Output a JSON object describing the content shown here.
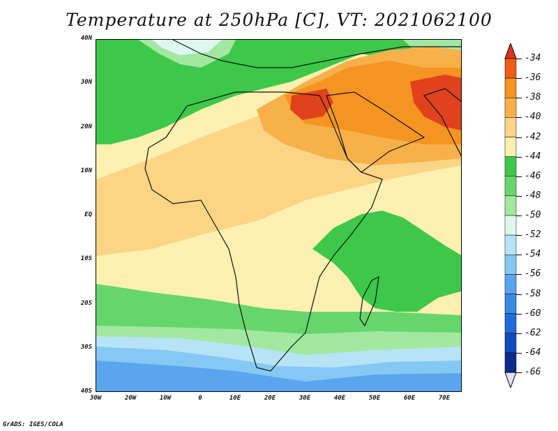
{
  "title": "Temperature at 250hPa [C], VT: 2021062100",
  "credit": "GrADS: IGES/COLA",
  "lat_labels": [
    "40N",
    "30N",
    "20N",
    "10N",
    "EQ",
    "10S",
    "20S",
    "30S",
    "40S"
  ],
  "lon_labels": [
    "30W",
    "20W",
    "10W",
    "0",
    "10E",
    "20E",
    "30E",
    "40E",
    "50E",
    "60E",
    "70E"
  ],
  "colorbar": {
    "labels": [
      "-34",
      "-36",
      "-38",
      "-40",
      "-42",
      "-44",
      "-46",
      "-48",
      "-50",
      "-52",
      "-54",
      "-56",
      "-58",
      "-60",
      "-62",
      "-64",
      "-66"
    ],
    "colors": [
      "#e0321e",
      "#f05a18",
      "#f59420",
      "#f8b04a",
      "#fbd585",
      "#fdf0b0",
      "#3ec84a",
      "#66d66c",
      "#a2e8a0",
      "#dcf8f0",
      "#b6e4f6",
      "#86c8f4",
      "#5aa6ee",
      "#3a8ae4",
      "#236cd8",
      "#124cbc",
      "#0a2c8c",
      "#e6e0f8"
    ],
    "top_triangle_color": "#e0321e",
    "bottom_triangle_color": "#e6e0f8"
  },
  "map_colors": {
    "hot": "#e0421e",
    "orange": "#f59420",
    "light_orange": "#f8b04a",
    "tan": "#fbd585",
    "cream": "#fdf0b0",
    "green": "#3ec84a",
    "mid_green": "#66d66c",
    "light_green": "#a2e8a0",
    "pale_cyan": "#dcf8f0",
    "light_blue": "#b6e4f6",
    "blue": "#86c8f4",
    "deep_blue": "#5aa6ee",
    "coast": "#111111"
  }
}
